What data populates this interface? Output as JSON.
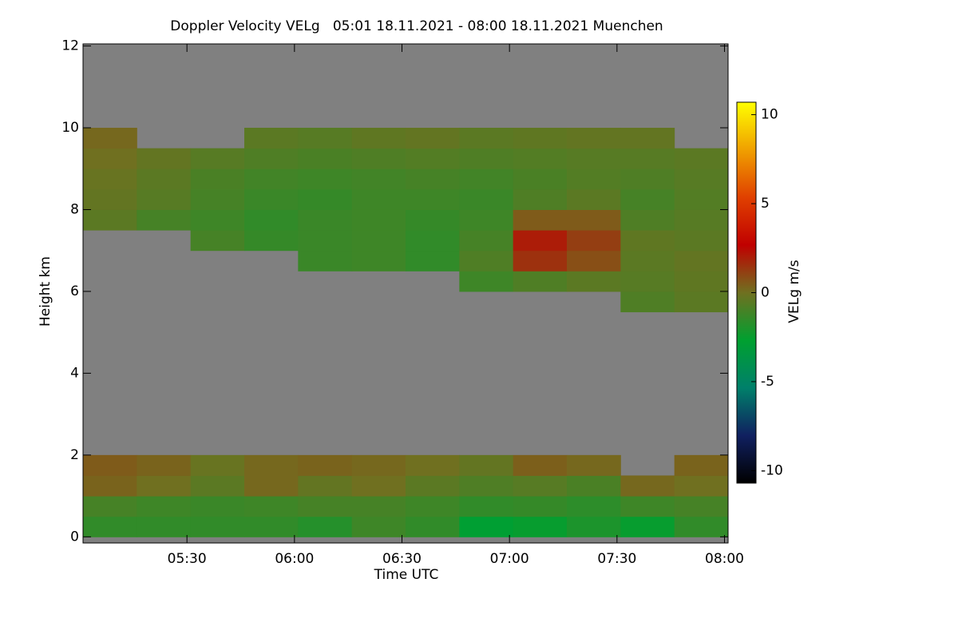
{
  "chart_data": {
    "type": "heatmap",
    "title": "Doppler Velocity VELg   05:01 18.11.2021 - 08:00 18.11.2021 Muenchen",
    "xlabel": "Time UTC",
    "ylabel": "Height km",
    "colorbar_label": "VELg m/s",
    "xlim": [
      301,
      481
    ],
    "xticks": [
      {
        "value": 330,
        "label": "05:30"
      },
      {
        "value": 360,
        "label": "06:00"
      },
      {
        "value": 390,
        "label": "06:30"
      },
      {
        "value": 420,
        "label": "07:00"
      },
      {
        "value": 450,
        "label": "07:30"
      },
      {
        "value": 480,
        "label": "08:00"
      }
    ],
    "ylim": [
      -0.15,
      12.05
    ],
    "yticks": [
      0,
      2,
      4,
      6,
      8,
      10,
      12
    ],
    "clim": [
      -10.7,
      10.7
    ],
    "cticks": [
      -10,
      -5,
      0,
      5,
      10
    ],
    "colorscale": [
      "#000000",
      "#102060",
      "#00806a",
      "#00a030",
      "#707020",
      "#c00000",
      "#e04000",
      "#f0a000",
      "#ffff00"
    ],
    "background_color": "#808080",
    "x_bins": [
      301,
      316,
      331,
      346,
      361,
      376,
      391,
      406,
      421,
      436,
      451,
      466,
      481
    ],
    "y_bins": [
      0,
      0.5,
      1,
      1.5,
      2,
      2.5,
      3,
      3.5,
      4,
      4.5,
      5,
      5.5,
      6,
      6.5,
      7,
      7.5,
      8,
      8.5,
      9,
      9.5,
      10
    ],
    "z": [
      [
        -1.5,
        -1.5,
        -1.5,
        -1.5,
        -1.8,
        -1.2,
        -1.5,
        -2.8,
        -2.5,
        -2,
        -2.5,
        -1.5
      ],
      [
        -1,
        -1.2,
        -1.3,
        -1.2,
        -1,
        -1,
        -1.2,
        -1.5,
        -1.4,
        -1.6,
        -1.2,
        -1
      ],
      [
        0.3,
        0,
        -0.5,
        0.2,
        -0.3,
        0,
        -0.5,
        -0.8,
        -0.6,
        -0.9,
        0.2,
        0
      ],
      [
        0.5,
        0.3,
        -0.2,
        0.2,
        0.3,
        0.2,
        0,
        -0.3,
        0.4,
        0.2,
        null,
        0.3
      ],
      [
        null,
        null,
        null,
        null,
        null,
        null,
        null,
        null,
        null,
        null,
        null,
        null
      ],
      [
        null,
        null,
        null,
        null,
        null,
        null,
        null,
        null,
        null,
        null,
        null,
        null
      ],
      [
        null,
        null,
        null,
        null,
        null,
        null,
        null,
        null,
        null,
        null,
        null,
        null
      ],
      [
        null,
        null,
        null,
        null,
        null,
        null,
        null,
        null,
        null,
        null,
        null,
        null
      ],
      [
        null,
        null,
        null,
        null,
        null,
        null,
        null,
        null,
        null,
        null,
        null,
        null
      ],
      [
        null,
        null,
        null,
        null,
        null,
        null,
        null,
        null,
        null,
        null,
        null,
        null
      ],
      [
        null,
        null,
        null,
        null,
        null,
        null,
        null,
        null,
        null,
        null,
        null,
        null
      ],
      [
        null,
        null,
        null,
        null,
        null,
        null,
        null,
        null,
        null,
        null,
        -0.8,
        -0.5
      ],
      [
        null,
        null,
        null,
        null,
        null,
        null,
        null,
        -1.2,
        -0.8,
        -0.5,
        -0.6,
        -0.4
      ],
      [
        null,
        null,
        null,
        null,
        -1.3,
        -1.2,
        -1.5,
        -0.8,
        1.5,
        0.8,
        -0.5,
        -0.3
      ],
      [
        null,
        null,
        -1,
        -1.4,
        -1.3,
        -1.2,
        -1.5,
        -1,
        2,
        1.2,
        -0.4,
        -0.5
      ],
      [
        -0.5,
        -1,
        -1.2,
        -1.5,
        -1.3,
        -1.2,
        -1.4,
        -1.2,
        0.5,
        0.5,
        -0.8,
        -0.6
      ],
      [
        -0.3,
        -0.6,
        -1,
        -1.3,
        -1.4,
        -1.2,
        -1.2,
        -1.3,
        -0.8,
        -0.5,
        -1,
        -0.7
      ],
      [
        -0.2,
        -0.5,
        -0.9,
        -1.1,
        -1.2,
        -1.1,
        -1,
        -1.1,
        -0.9,
        -0.7,
        -0.8,
        -0.6
      ],
      [
        0,
        -0.3,
        -0.6,
        -0.8,
        -0.9,
        -0.8,
        -0.7,
        -0.8,
        -0.7,
        -0.6,
        -0.6,
        -0.5
      ],
      [
        0.2,
        null,
        null,
        -0.5,
        -0.6,
        -0.4,
        -0.3,
        -0.5,
        -0.4,
        -0.3,
        -0.3,
        null
      ]
    ]
  }
}
